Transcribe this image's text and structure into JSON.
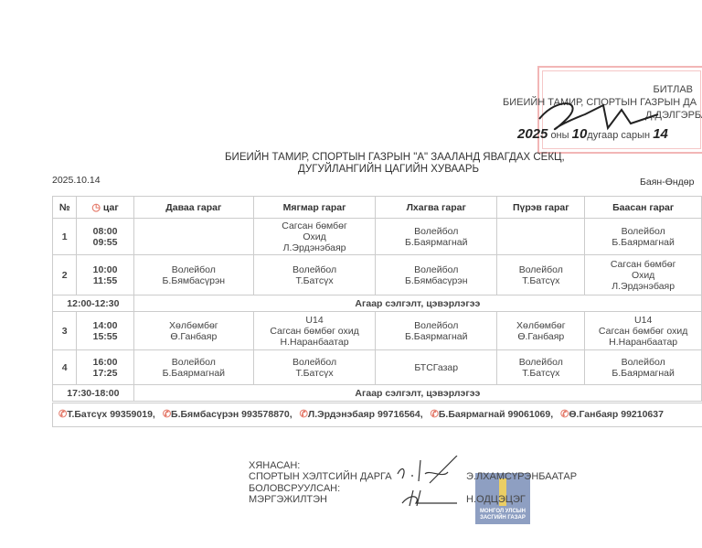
{
  "approval": {
    "label": "БИТЛАВ",
    "position": "БИЕИЙН ТАМИР, СПОРТЫН ГАЗРЫН ДА",
    "name": "Д.ДЭЛГЭРБА",
    "date_year": "2025",
    "date_text": "оны",
    "month": "10",
    "month_text": "дугаар сарын",
    "day": "14"
  },
  "title": {
    "line1": "БИЕИЙН ТАМИР, СПОРТЫН ГАЗРЫН \"А\" ЗААЛАНД ЯВАГДАХ СЕКЦ,",
    "line2": "ДУГУЙЛАНГИЙН ЦАГИЙН ХУВААРЬ"
  },
  "date": "2025.10.14",
  "location": "Баян-Өндөр",
  "table": {
    "headers": [
      "№",
      "цаг",
      "Даваа гараг",
      "Мягмар гараг",
      "Лхагва гараг",
      "Пүрэв гараг",
      "Баасан гараг"
    ],
    "rows": [
      {
        "no": "1",
        "start": "08:00",
        "end": "09:55",
        "cells": [
          [],
          [
            "Сагсан бөмбөг",
            "Охид",
            "Л.Эрдэнэбаяр"
          ],
          [
            "Волейбол",
            "Б.Баярмагнай"
          ],
          [],
          [
            "Волейбол",
            "Б.Баярмагнай"
          ]
        ]
      },
      {
        "no": "2",
        "start": "10:00",
        "end": "11:55",
        "cells": [
          [
            "Волейбол",
            "Б.Бямбасүрэн"
          ],
          [
            "Волейбол",
            "Т.Батсүх"
          ],
          [
            "Волейбол",
            "Б.Бямбасүрэн"
          ],
          [
            "Волейбол",
            "Т.Батсүх"
          ],
          [
            "Сагсан бөмбөг",
            "Охид",
            "Л.Эрдэнэбаяр"
          ]
        ]
      },
      {
        "no": "3",
        "start": "14:00",
        "end": "15:55",
        "cells": [
          [
            "Хөлбөмбөг",
            "Ө.Ганбаяр"
          ],
          [
            "U14",
            "Сагсан бөмбөг охид",
            "Н.Наранбаатар"
          ],
          [
            "Волейбол",
            "Б.Баярмагнай"
          ],
          [
            "Хөлбөмбөг",
            "Ө.Ганбаяр"
          ],
          [
            "U14",
            "Сагсан бөмбөг охид",
            "Н.Наранбаатар"
          ]
        ]
      },
      {
        "no": "4",
        "start": "16:00",
        "end": "17:25",
        "cells": [
          [
            "Волейбол",
            "Б.Баярмагнай"
          ],
          [
            "Волейбол",
            "Т.Батсүх"
          ],
          [
            "БТСГазар"
          ],
          [
            "Волейбол",
            "Т.Батсүх"
          ],
          [
            "Волейбол",
            "Б.Баярмагнай"
          ]
        ]
      }
    ],
    "breaks": [
      {
        "time": "12:00-12:30",
        "label": "Агаар сэлгэлт, цэвэрлэгээ"
      },
      {
        "time": "17:30-18:00",
        "label": "Агаар сэлгэлт, цэвэрлэгээ"
      }
    ]
  },
  "contacts": [
    "Т.Батсүх 99359019,",
    "Б.Бямбасүрэн 993578870,",
    "Л.Эрдэнэбаяр 99716564,",
    "Б.Баярмагнай 99061069,",
    "Ө.Ганбаяр 99210637"
  ],
  "signatures": {
    "reviewed_label": "ХЯНАСАН:",
    "reviewed_position": "СПОРТЫН ХЭЛТСИЙН ДАРГА",
    "reviewed_name": "Э.ЛХАМСҮРЭНБААТАР",
    "prepared_label": "БОЛОВСРУУЛСАН:",
    "prepared_position": "МЭРГЭЖИЛТЭН",
    "prepared_name": "Н.ОДЦЭЦЭГ"
  },
  "emblem": {
    "line1": "МОНГОЛ УЛСЫН",
    "line2": "ЗАСГИЙН ГАЗАР"
  },
  "colors": {
    "stamp": "#f2b6b6",
    "phone_icon": "#e57a6a",
    "emblem": "#7b8fb8"
  }
}
